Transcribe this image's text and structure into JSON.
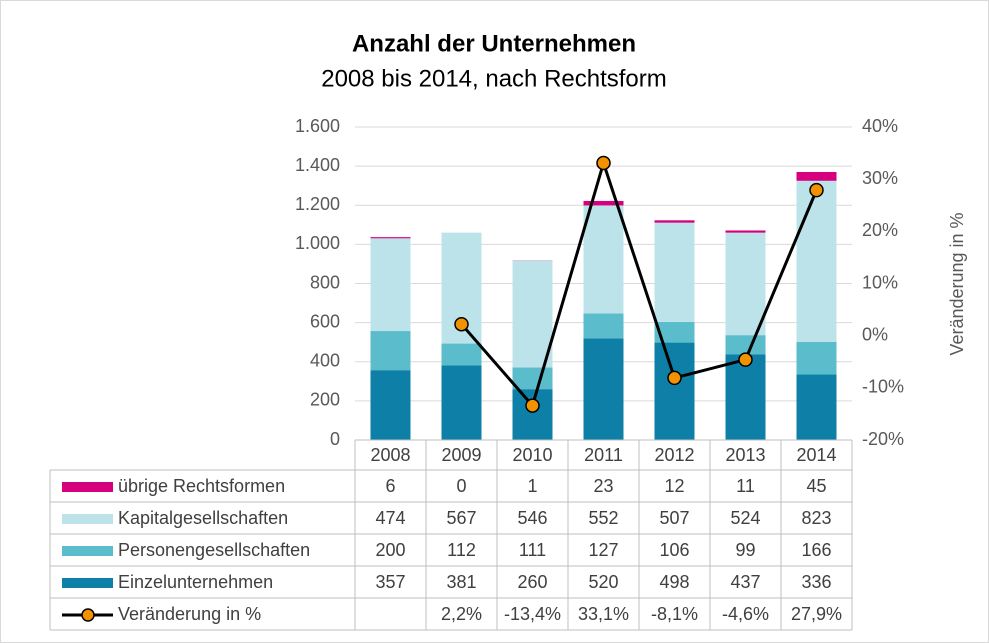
{
  "chart_data": {
    "type": "bar",
    "stacked": true,
    "title": "Anzahl der Unternehmen",
    "subtitle": "2008 bis 2014, nach Rechtsform",
    "y2_label": "Veränderung in %",
    "categories": [
      "2008",
      "2009",
      "2010",
      "2011",
      "2012",
      "2013",
      "2014"
    ],
    "series": [
      {
        "name": "Einzelunternehmen",
        "color": "#0e7fa6",
        "values": [
          357,
          381,
          260,
          520,
          498,
          437,
          336
        ]
      },
      {
        "name": "Personengesellschaften",
        "color": "#5bbccc",
        "values": [
          200,
          112,
          111,
          127,
          106,
          99,
          166
        ]
      },
      {
        "name": "Kapitalgesellschaften",
        "color": "#bde3ea",
        "values": [
          474,
          567,
          546,
          552,
          507,
          524,
          823
        ]
      },
      {
        "name": "übrige Rechtsformen",
        "color": "#d6007e",
        "values": [
          6,
          0,
          1,
          23,
          12,
          11,
          45
        ]
      },
      {
        "name": "Veränderung in %",
        "type": "line",
        "axis": "y2",
        "color": "#000000",
        "marker_color": "#f39200",
        "values": [
          null,
          2.2,
          -13.4,
          33.1,
          -8.1,
          -4.6,
          27.9
        ],
        "value_labels": [
          null,
          "2,2%",
          "-13,4%",
          "33,1%",
          "-8,1%",
          "-4,6%",
          "27,9%"
        ]
      }
    ],
    "ylim": [
      0,
      1600
    ],
    "yticks": [
      0,
      200,
      400,
      600,
      800,
      {
        "value": 1000,
        "label": "1.000"
      },
      {
        "value": 1200,
        "label": "1.200"
      },
      {
        "value": 1400,
        "label": "1.400"
      },
      {
        "value": 1600,
        "label": "1.600"
      }
    ],
    "y2lim": [
      -20,
      40
    ],
    "y2ticks": [
      {
        "value": -20,
        "label": "-20%"
      },
      {
        "value": -10,
        "label": "-10%"
      },
      {
        "value": 0,
        "label": "0%"
      },
      {
        "value": 10,
        "label": "10%"
      },
      {
        "value": 20,
        "label": "20%"
      },
      {
        "value": 30,
        "label": "30%"
      },
      {
        "value": 40,
        "label": "40%"
      }
    ],
    "grid": true,
    "data_table": true
  }
}
